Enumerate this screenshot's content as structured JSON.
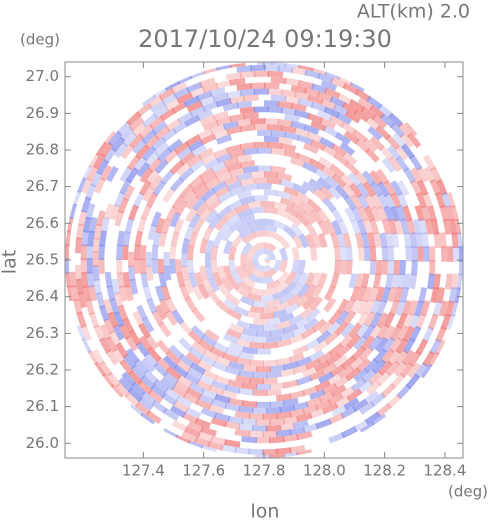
{
  "chart_data": {
    "type": "radar-ppi",
    "title": "2017/10/24 09:19:30",
    "altitude_label": "ALT(km) 2.0",
    "x_label": "lon",
    "x_unit": "(deg)",
    "y_label": "lat",
    "y_unit": "(deg)",
    "xlim": [
      127.14,
      128.46
    ],
    "xticks": [
      127.4,
      127.6,
      127.8,
      {
        "value": 128,
        "label": "128.0"
      },
      128.2,
      128.4
    ],
    "ylim": [
      25.96,
      27.04
    ],
    "yticks": [
      {
        "value": 26,
        "label": "26.0"
      },
      26.1,
      26.2,
      26.3,
      26.4,
      26.5,
      26.6,
      26.7,
      26.8,
      26.9,
      {
        "value": 27,
        "label": "27.0"
      }
    ]
  }
}
